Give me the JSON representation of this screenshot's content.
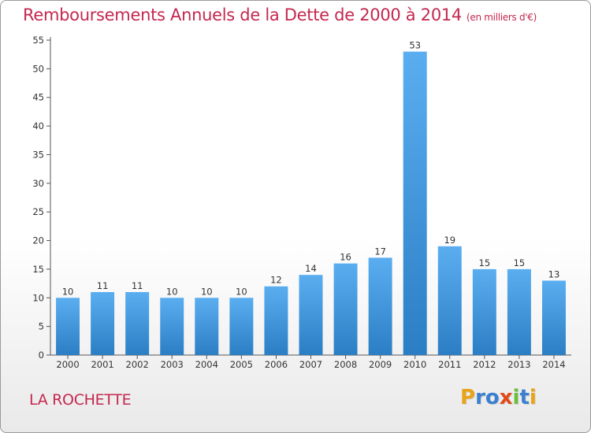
{
  "chart_data": {
    "type": "bar",
    "title": "Remboursements Annuels de la Dette de 2000 à 2014",
    "unit_note": "(en milliers d'€)",
    "categories": [
      "2000",
      "2001",
      "2002",
      "2003",
      "2004",
      "2005",
      "2006",
      "2007",
      "2008",
      "2009",
      "2010",
      "2011",
      "2012",
      "2013",
      "2014"
    ],
    "values": [
      10,
      11,
      11,
      10,
      10,
      10,
      12,
      14,
      16,
      17,
      53,
      19,
      15,
      15,
      13
    ],
    "ylim": [
      0,
      55
    ],
    "yticks": [
      0,
      5,
      10,
      15,
      20,
      25,
      30,
      35,
      40,
      45,
      50,
      55
    ],
    "grid": false,
    "bar_color": "#3b8fd6"
  },
  "commune": "LA ROCHETTE",
  "logo": {
    "letters": [
      "P",
      "r",
      "o",
      "x",
      "i",
      "t",
      "i"
    ],
    "colors": [
      "#e8a317",
      "#3a7fd0",
      "#3a7fd0",
      "#e04a1a",
      "#6abf3a",
      "#3a7fd0",
      "#e8a317"
    ]
  }
}
